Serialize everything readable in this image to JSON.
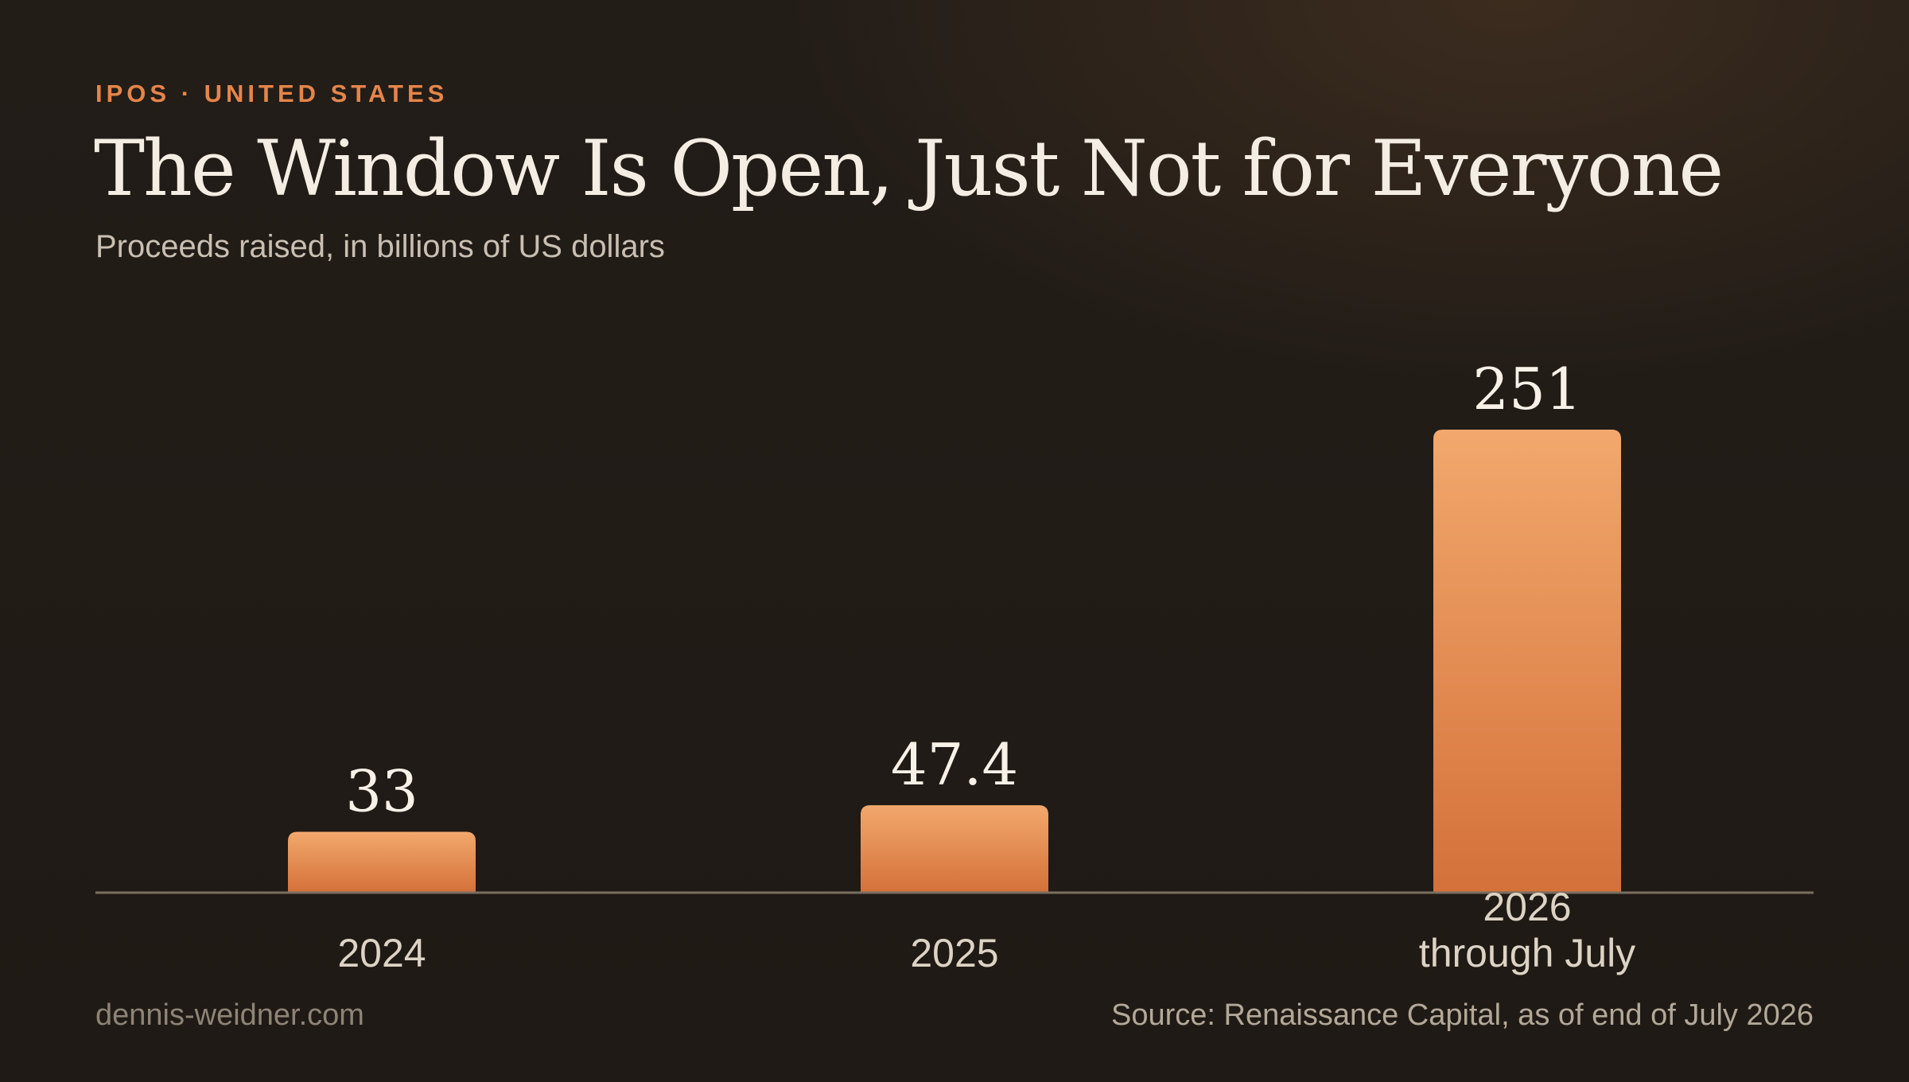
{
  "header": {
    "kicker": "IPOS · UNITED STATES",
    "title": "The Window Is Open, Just Not for Everyone",
    "subtitle": "Proceeds raised, in billions of US dollars"
  },
  "footer": {
    "site": "dennis-weidner.com",
    "source": "Source: Renaissance Capital, as of end of July 2026"
  },
  "colors": {
    "accent": "#e5854a",
    "bar_top": "#f2a86c",
    "bar_bottom": "#d4713a",
    "axis": "#7a6e60"
  },
  "chart_data": {
    "type": "bar",
    "title": "The Window Is Open, Just Not for Everyone",
    "subtitle": "Proceeds raised, in billions of US dollars",
    "categories": [
      [
        "2024"
      ],
      [
        "2025"
      ],
      [
        "2026",
        "through July"
      ]
    ],
    "values": [
      33,
      47.4,
      251
    ],
    "value_labels": [
      "33",
      "47.4",
      "251"
    ],
    "ylim": [
      0,
      251
    ],
    "grid": false,
    "legend": "none"
  }
}
